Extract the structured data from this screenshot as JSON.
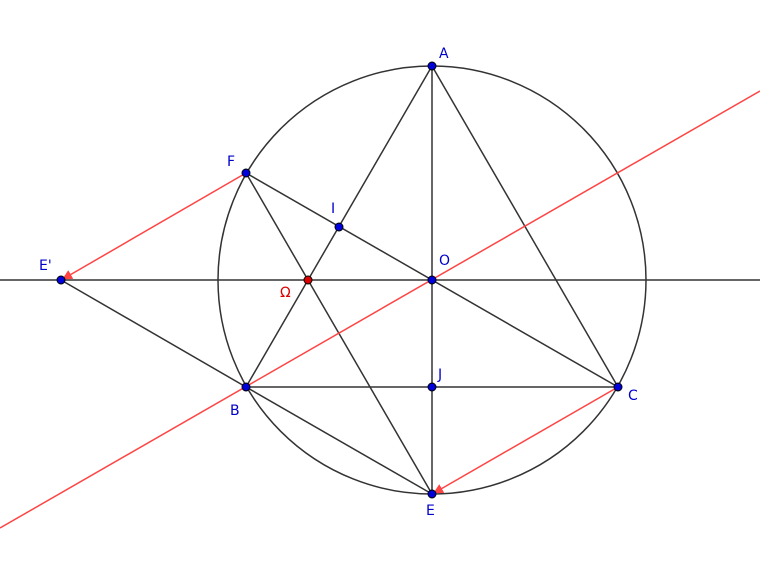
{
  "points": [
    {
      "label": "A"
    },
    {
      "label": "F"
    },
    {
      "label": "I"
    },
    {
      "label": "E'"
    },
    {
      "label": "Ω"
    },
    {
      "label": "O"
    },
    {
      "label": "J"
    },
    {
      "label": "C"
    },
    {
      "label": "B"
    },
    {
      "label": "E"
    }
  ]
}
